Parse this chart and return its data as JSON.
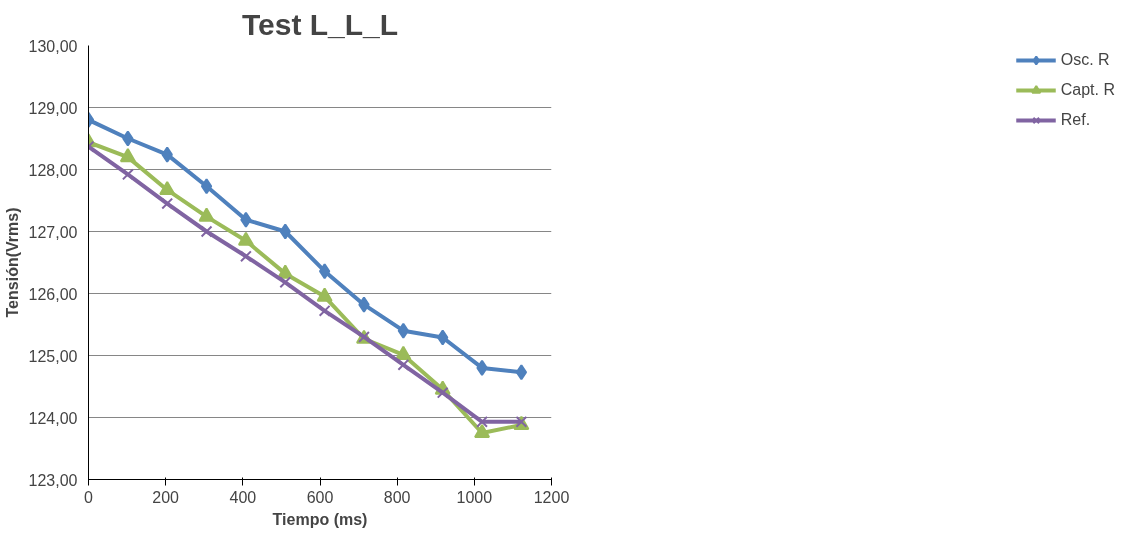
{
  "chart_data": {
    "type": "line",
    "title": "Test L_L_L",
    "xlabel": "Tiempo (ms)",
    "ylabel": "Tensión(Vrms)",
    "x": [
      0,
      102,
      204,
      306,
      408,
      510,
      612,
      714,
      816,
      918,
      1020,
      1122
    ],
    "series": [
      {
        "name": "Osc. R",
        "color": "#4f81bd",
        "marker": "diamond",
        "values": [
          128.8,
          128.5,
          128.24,
          127.73,
          127.19,
          127.0,
          126.36,
          125.82,
          125.4,
          125.29,
          124.8,
          124.73
        ]
      },
      {
        "name": "Capt. R",
        "color": "#9bbb59",
        "marker": "triangle",
        "values": [
          128.44,
          128.2,
          127.67,
          127.24,
          126.85,
          126.32,
          125.95,
          125.27,
          125.01,
          124.45,
          123.75,
          123.88
        ]
      },
      {
        "name": "Ref.",
        "color": "#8064a2",
        "marker": "cross",
        "values": [
          128.37,
          127.92,
          127.45,
          127.0,
          126.6,
          126.18,
          125.72,
          125.3,
          124.85,
          124.4,
          123.93,
          123.93
        ]
      }
    ],
    "xlim": [
      0,
      1200
    ],
    "xticks": [
      0,
      200,
      400,
      600,
      800,
      1000,
      1200
    ],
    "ylim": [
      123,
      130
    ],
    "yticks": [
      {
        "value": 123,
        "label": "123,00"
      },
      {
        "value": 124,
        "label": "124,00"
      },
      {
        "value": 125,
        "label": "125,00"
      },
      {
        "value": 126,
        "label": "126,00"
      },
      {
        "value": 127,
        "label": "127,00"
      },
      {
        "value": 128,
        "label": "128,00"
      },
      {
        "value": 129,
        "label": "129,00"
      },
      {
        "value": 130,
        "label": "130,00"
      }
    ],
    "grid": "y",
    "legend": "right",
    "line_style": "solid"
  }
}
